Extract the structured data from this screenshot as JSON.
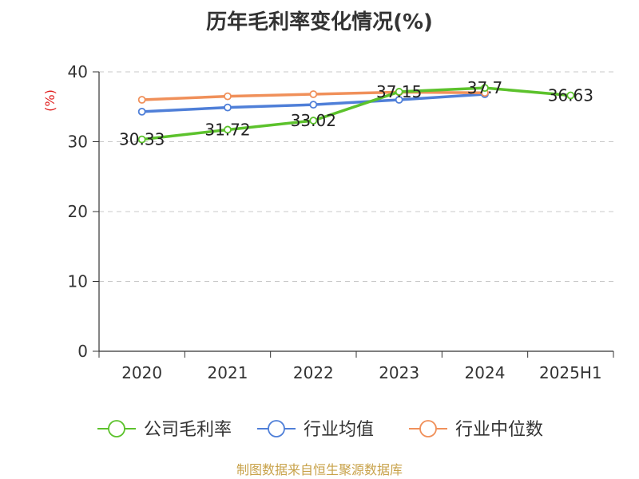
{
  "chart_data": {
    "type": "line",
    "title": "历年毛利率变化情况(%)",
    "ylabel": "(%)",
    "xlabel": "",
    "categories": [
      "2020",
      "2021",
      "2022",
      "2023",
      "2024",
      "2025H1"
    ],
    "ylim": [
      0,
      40
    ],
    "yticks": [
      "0",
      "10",
      "20",
      "30",
      "40"
    ],
    "grid": "horizontal-dashed",
    "legend_position": "bottom",
    "series": [
      {
        "name": "公司毛利率",
        "color": "#5cc22c",
        "values": [
          30.33,
          31.72,
          33.02,
          37.15,
          37.7,
          36.63
        ],
        "labels": [
          "30.33",
          "31.72",
          "33.02",
          "37.15",
          "37.7",
          "36.63"
        ]
      },
      {
        "name": "行业均值",
        "color": "#4f7fd8",
        "values": [
          34.3,
          34.9,
          35.3,
          36.0,
          36.8,
          null
        ]
      },
      {
        "name": "行业中位数",
        "color": "#f0905a",
        "values": [
          36.0,
          36.5,
          36.8,
          37.1,
          37.0,
          null
        ]
      }
    ]
  },
  "source_text": "制图数据来自恒生聚源数据库"
}
